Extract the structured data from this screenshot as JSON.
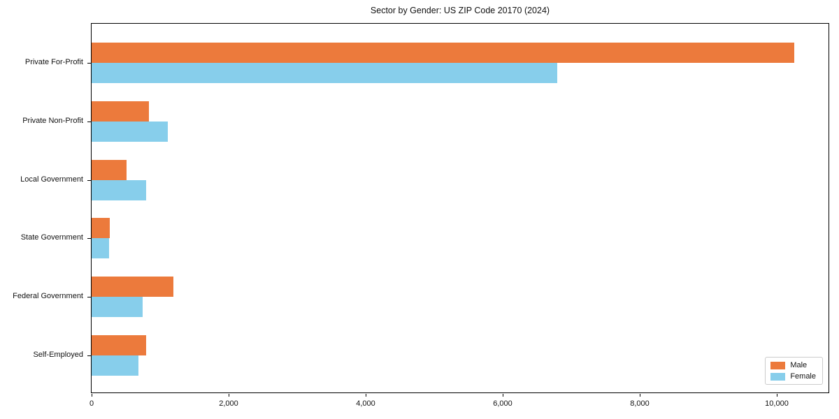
{
  "title": "Sector by Gender: US ZIP Code 20170 (2024)",
  "colors": {
    "male": "#ec7a3c",
    "female": "#87ceeb",
    "spine": "#000000",
    "legend_border": "#cccccc",
    "background": "#ffffff",
    "text": "#111111"
  },
  "chart_data": {
    "type": "bar",
    "orientation": "horizontal",
    "title": "Sector by Gender: US ZIP Code 20170 (2024)",
    "categories": [
      "Private For-Profit",
      "Private Non-Profit",
      "Local Government",
      "State Government",
      "Federal Government",
      "Self-Employed"
    ],
    "series": [
      {
        "name": "Male",
        "color": "#ec7a3c",
        "values": [
          10255,
          835,
          510,
          270,
          1190,
          800
        ]
      },
      {
        "name": "Female",
        "color": "#87ceeb",
        "values": [
          6800,
          1110,
          800,
          260,
          750,
          680
        ]
      }
    ],
    "xlabel": "",
    "ylabel": "",
    "xlim": [
      0,
      10776
    ],
    "x_ticks": [
      0,
      2000,
      4000,
      6000,
      8000,
      10000
    ],
    "x_tick_labels": [
      "0",
      "2,000",
      "4,000",
      "6,000",
      "8,000",
      "10,000"
    ],
    "grid": false,
    "legend": {
      "position": "lower right",
      "entries": [
        "Male",
        "Female"
      ]
    }
  }
}
